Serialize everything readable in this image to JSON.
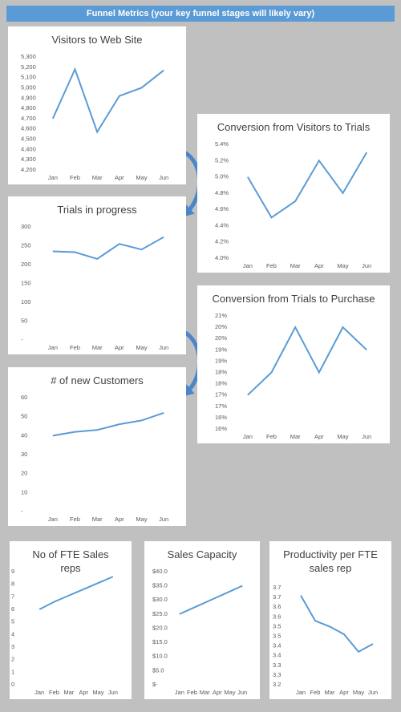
{
  "title": "Funnel Metrics (your key funnel stages will likely vary)",
  "chart_data": [
    {
      "type": "line",
      "title": "Visitors to Web Site",
      "categories": [
        "Jan",
        "Feb",
        "Mar",
        "Apr",
        "May",
        "Jun"
      ],
      "values": [
        4700,
        5180,
        4570,
        4920,
        5000,
        5170
      ],
      "color": "#5b9bd5",
      "grid": false,
      "ylim": [
        4200,
        5300
      ],
      "yticks": [
        {
          "value": 4200,
          "label": "4,200"
        },
        {
          "value": 4300,
          "label": "4,300"
        },
        {
          "value": 4400,
          "label": "4,400"
        },
        {
          "value": 4500,
          "label": "4,500"
        },
        {
          "value": 4600,
          "label": "4,600"
        },
        {
          "value": 4700,
          "label": "4,700"
        },
        {
          "value": 4800,
          "label": "4,800"
        },
        {
          "value": 4900,
          "label": "4,900"
        },
        {
          "value": 5000,
          "label": "5,000"
        },
        {
          "value": 5100,
          "label": "5,100"
        },
        {
          "value": 5200,
          "label": "5,200"
        },
        {
          "value": 5300,
          "label": "5,300"
        }
      ]
    },
    {
      "type": "line",
      "title": "Conversion from Visitors to Trials",
      "categories": [
        "Jan",
        "Feb",
        "Mar",
        "Apr",
        "May",
        "Jun"
      ],
      "values": [
        5.0,
        4.5,
        4.7,
        5.2,
        4.8,
        5.3
      ],
      "color": "#5b9bd5",
      "grid": false,
      "ylim": [
        4.0,
        5.4
      ],
      "yticks": [
        {
          "value": 4.0,
          "label": "4.0%"
        },
        {
          "value": 4.2,
          "label": "4.2%"
        },
        {
          "value": 4.4,
          "label": "4.4%"
        },
        {
          "value": 4.6,
          "label": "4.6%"
        },
        {
          "value": 4.8,
          "label": "4.8%"
        },
        {
          "value": 5.0,
          "label": "5.0%"
        },
        {
          "value": 5.2,
          "label": "5.2%"
        },
        {
          "value": 5.4,
          "label": "5.4%"
        }
      ]
    },
    {
      "type": "line",
      "title": "Trials in progress",
      "categories": [
        "Jan",
        "Feb",
        "Mar",
        "Apr",
        "May",
        "Jun"
      ],
      "values": [
        235,
        233,
        215,
        255,
        240,
        273
      ],
      "color": "#5b9bd5",
      "grid": false,
      "ylim": [
        0,
        300
      ],
      "yticks": [
        {
          "value": 0,
          "label": "-"
        },
        50,
        100,
        150,
        200,
        250,
        300
      ]
    },
    {
      "type": "line",
      "title": "Conversion from Trials to Purchase",
      "categories": [
        "Jan",
        "Feb",
        "Mar",
        "Apr",
        "May",
        "Jun"
      ],
      "values": [
        17.0,
        18.0,
        20.0,
        18.0,
        20.0,
        19.0
      ],
      "color": "#5b9bd5",
      "grid": false,
      "ylim": [
        15.5,
        20.5
      ],
      "yticks": [
        {
          "value": 15.5,
          "label": "16%"
        },
        {
          "value": 16,
          "label": "16%"
        },
        {
          "value": 16.5,
          "label": "17%"
        },
        {
          "value": 17,
          "label": "17%"
        },
        {
          "value": 17.5,
          "label": "18%"
        },
        {
          "value": 18,
          "label": "18%"
        },
        {
          "value": 18.5,
          "label": "19%"
        },
        {
          "value": 19,
          "label": "19%"
        },
        {
          "value": 19.5,
          "label": "20%"
        },
        {
          "value": 20,
          "label": "20%"
        },
        {
          "value": 20.5,
          "label": "21%"
        }
      ]
    },
    {
      "type": "line",
      "title": "# of new Customers",
      "categories": [
        "Jan",
        "Feb",
        "Mar",
        "Apr",
        "May",
        "Jun"
      ],
      "values": [
        40,
        42,
        43,
        46,
        48,
        52
      ],
      "color": "#5b9bd5",
      "grid": false,
      "ylim": [
        0,
        60
      ],
      "yticks": [
        {
          "value": 0,
          "label": "-"
        },
        10,
        20,
        30,
        40,
        50,
        60
      ]
    },
    {
      "type": "line",
      "title": "No of FTE Sales reps",
      "categories": [
        "Jan",
        "Feb",
        "Mar",
        "Apr",
        "May",
        "Jun"
      ],
      "values": [
        6,
        6.6,
        7.1,
        7.6,
        8.1,
        8.6
      ],
      "color": "#5b9bd5",
      "grid": false,
      "ylim": [
        0,
        9
      ],
      "yticks": [
        0,
        1,
        2,
        3,
        4,
        5,
        6,
        7,
        8,
        9
      ]
    },
    {
      "type": "line",
      "title": "Sales Capacity",
      "categories": [
        "Jan",
        "Feb",
        "Mar",
        "Apr",
        "May",
        "Jun"
      ],
      "values": [
        25,
        27,
        29,
        31,
        33,
        35
      ],
      "color": "#5b9bd5",
      "grid": false,
      "ylim": [
        0,
        40
      ],
      "yticks": [
        {
          "value": 0,
          "label": "$-"
        },
        {
          "value": 5,
          "label": "$5.0"
        },
        {
          "value": 10,
          "label": "$10.0"
        },
        {
          "value": 15,
          "label": "$15.0"
        },
        {
          "value": 20,
          "label": "$20.0"
        },
        {
          "value": 25,
          "label": "$25.0"
        },
        {
          "value": 30,
          "label": "$30.0"
        },
        {
          "value": 35,
          "label": "$35.0"
        },
        {
          "value": 40,
          "label": "$40.0"
        }
      ]
    },
    {
      "type": "line",
      "title": "Productivity per FTE sales rep",
      "categories": [
        "Jan",
        "Feb",
        "Mar",
        "Apr",
        "May",
        "Jun"
      ],
      "values": [
        3.66,
        3.53,
        3.5,
        3.46,
        3.37,
        3.41
      ],
      "color": "#5b9bd5",
      "grid": false,
      "ylim": [
        3.2,
        3.7
      ],
      "yticks": [
        3.2,
        {
          "value": 3.25,
          "label": "3.3"
        },
        3.3,
        {
          "value": 3.35,
          "label": "3.4"
        },
        3.4,
        {
          "value": 3.45,
          "label": "3.5"
        },
        3.5,
        {
          "value": 3.55,
          "label": "3.6"
        },
        3.6,
        {
          "value": 3.65,
          "label": "3.7"
        },
        3.7
      ]
    }
  ]
}
